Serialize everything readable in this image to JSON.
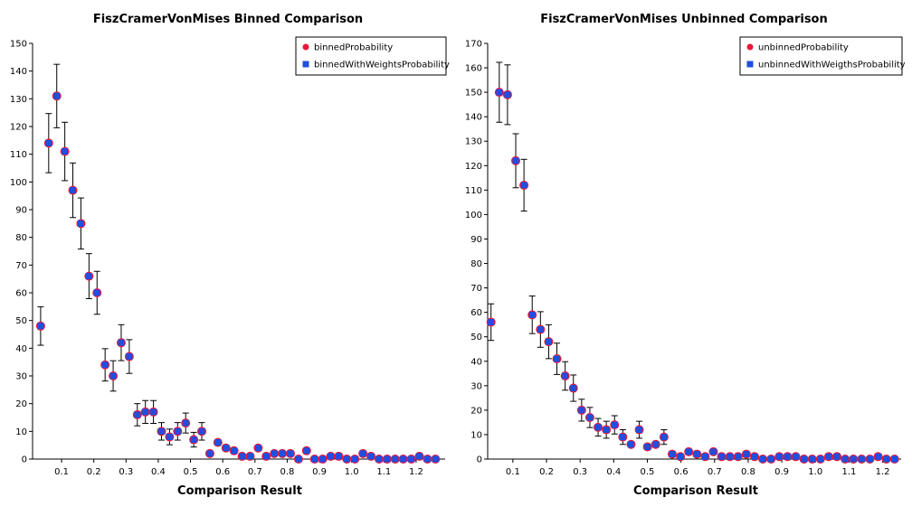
{
  "chart_data": [
    {
      "type": "scatter",
      "title": "FiszCramerVonMises Binned Comparison",
      "xlabel": "Comparison Result",
      "ylabel": "",
      "xlim": [
        0.01,
        1.29
      ],
      "ylim": [
        0,
        150
      ],
      "xticks": [
        0.1,
        0.2,
        0.3,
        0.4,
        0.5,
        0.6,
        0.7,
        0.8,
        0.9,
        1.0,
        1.1,
        1.2
      ],
      "xtick_labels": [
        "0.1",
        "0.2",
        "0.3",
        "0.4",
        "0.5",
        "0.6",
        "0.7",
        "0.8",
        "0.9",
        "1.0",
        "1.1",
        "1.2"
      ],
      "yticks": [
        0,
        10,
        20,
        30,
        40,
        50,
        60,
        70,
        80,
        90,
        100,
        110,
        120,
        130,
        140,
        150
      ],
      "ytick_labels": [
        "0",
        "10",
        "20",
        "30",
        "40",
        "50",
        "60",
        "70",
        "80",
        "90",
        "100",
        "110",
        "120",
        "130",
        "140",
        "150"
      ],
      "legend_position": "top-right",
      "grid": false,
      "x": [
        0.035,
        0.06,
        0.085,
        0.11,
        0.135,
        0.16,
        0.185,
        0.21,
        0.235,
        0.26,
        0.285,
        0.31,
        0.335,
        0.36,
        0.385,
        0.41,
        0.435,
        0.46,
        0.485,
        0.51,
        0.535,
        0.56,
        0.585,
        0.61,
        0.635,
        0.66,
        0.685,
        0.71,
        0.735,
        0.76,
        0.785,
        0.81,
        0.835,
        0.86,
        0.885,
        0.91,
        0.935,
        0.96,
        0.985,
        1.01,
        1.035,
        1.06,
        1.085,
        1.11,
        1.135,
        1.16,
        1.185,
        1.21,
        1.235,
        1.26
      ],
      "series": [
        {
          "name": "binnedProbability",
          "color": "#e8173a",
          "marker": "circle",
          "values": [
            48,
            114,
            131,
            111,
            97,
            85,
            66,
            60,
            34,
            30,
            42,
            37,
            16,
            17,
            17,
            10,
            8,
            10,
            13,
            7,
            10,
            2,
            6,
            4,
            3,
            1,
            1,
            4,
            1,
            2,
            2,
            2,
            0,
            3,
            0,
            0,
            1,
            1,
            0,
            0,
            2,
            1,
            0,
            0,
            0,
            0,
            0,
            1,
            0,
            0
          ]
        },
        {
          "name": "binnedWithWeightsProbability",
          "color": "#1f4fe0",
          "marker": "square",
          "values": [
            48,
            114,
            131,
            111,
            97,
            85,
            66,
            60,
            34,
            30,
            42,
            37,
            16,
            17,
            17,
            10,
            8,
            10,
            13,
            7,
            10,
            2,
            6,
            4,
            3,
            1,
            1,
            4,
            1,
            2,
            2,
            2,
            0,
            3,
            0,
            0,
            1,
            1,
            0,
            0,
            2,
            1,
            0,
            0,
            0,
            0,
            0,
            1,
            0,
            0
          ]
        }
      ],
      "error_bars": "sqrt"
    },
    {
      "type": "scatter",
      "title": "FiszCramerVonMises Unbinned Comparison",
      "xlabel": "Comparison Result",
      "ylabel": "",
      "xlim": [
        0.025,
        1.255
      ],
      "ylim": [
        0,
        170
      ],
      "xticks": [
        0.1,
        0.2,
        0.3,
        0.4,
        0.5,
        0.6,
        0.7,
        0.8,
        0.9,
        1.0,
        1.1,
        1.2
      ],
      "xtick_labels": [
        "0.1",
        "0.2",
        "0.3",
        "0.4",
        "0.5",
        "0.6",
        "0.7",
        "0.8",
        "0.9",
        "1.0",
        "1.1",
        "1.2"
      ],
      "yticks": [
        0,
        10,
        20,
        30,
        40,
        50,
        60,
        70,
        80,
        90,
        100,
        110,
        120,
        130,
        140,
        150,
        160,
        170
      ],
      "ytick_labels": [
        "0",
        "10",
        "20",
        "30",
        "40",
        "50",
        "60",
        "70",
        "80",
        "90",
        "100",
        "110",
        "120",
        "130",
        "140",
        "150",
        "160",
        "170"
      ],
      "legend_position": "top-right",
      "grid": false,
      "x": [
        0.035,
        0.0595,
        0.084,
        0.1085,
        0.133,
        0.1575,
        0.182,
        0.2065,
        0.231,
        0.2555,
        0.28,
        0.3045,
        0.329,
        0.3535,
        0.378,
        0.4025,
        0.427,
        0.4515,
        0.476,
        0.5005,
        0.525,
        0.5495,
        0.574,
        0.5985,
        0.623,
        0.6475,
        0.672,
        0.6965,
        0.721,
        0.7455,
        0.77,
        0.7945,
        0.819,
        0.8435,
        0.868,
        0.8925,
        0.917,
        0.9415,
        0.966,
        0.9905,
        1.015,
        1.0395,
        1.064,
        1.0885,
        1.113,
        1.1375,
        1.162,
        1.1865,
        1.211,
        1.2355
      ],
      "series": [
        {
          "name": "unbinnedProbability",
          "color": "#e8173a",
          "marker": "circle",
          "values": [
            56,
            150,
            149,
            122,
            112,
            59,
            53,
            48,
            41,
            34,
            29,
            20,
            17,
            13,
            12,
            14,
            9,
            6,
            12,
            5,
            6,
            9,
            2,
            1,
            3,
            2,
            1,
            3,
            1,
            1,
            1,
            2,
            1,
            0,
            0,
            1,
            1,
            1,
            0,
            0,
            0,
            1,
            1,
            0,
            0,
            0,
            0,
            1,
            0,
            0
          ]
        },
        {
          "name": "unbinnedWithWeigthsProbability",
          "color": "#1f4fe0",
          "marker": "square",
          "values": [
            56,
            150,
            149,
            122,
            112,
            59,
            53,
            48,
            41,
            34,
            29,
            20,
            17,
            13,
            12,
            14,
            9,
            6,
            12,
            5,
            6,
            9,
            2,
            1,
            3,
            2,
            1,
            3,
            1,
            1,
            1,
            2,
            1,
            0,
            0,
            1,
            1,
            1,
            0,
            0,
            0,
            1,
            1,
            0,
            0,
            0,
            0,
            1,
            0,
            0
          ]
        }
      ],
      "error_bars": "sqrt"
    }
  ]
}
